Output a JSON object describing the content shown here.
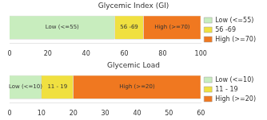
{
  "chart_data": [
    {
      "type": "bar",
      "orientation": "horizontal",
      "stacked": true,
      "title": "Glycemic Index (GI)",
      "categories": [
        null
      ],
      "series": [
        {
          "name": "Low (<=55)",
          "color": "#c8edbe",
          "values": [
            55
          ]
        },
        {
          "name": "56 -69",
          "color": "#f0e040",
          "values": [
            15
          ]
        },
        {
          "name": "High (>=70)",
          "color": "#f07820",
          "values": [
            30
          ]
        }
      ],
      "xlim": [
        0,
        100
      ],
      "xticks": [
        0,
        20,
        40,
        60,
        80,
        100
      ],
      "grid": false,
      "legend": "right",
      "tick_labels": "x"
    },
    {
      "type": "bar",
      "orientation": "horizontal",
      "stacked": true,
      "title": "Glycemic Load",
      "categories": [
        null
      ],
      "series": [
        {
          "name": "Low (<=10)",
          "color": "#c8edbe",
          "values": [
            10
          ]
        },
        {
          "name": "11 - 19",
          "color": "#f0e040",
          "values": [
            10
          ]
        },
        {
          "name": "High (>=20)",
          "color": "#f07820",
          "values": [
            40
          ]
        }
      ],
      "xlim": [
        0,
        60
      ],
      "xticks": [
        0,
        10,
        20,
        30,
        40,
        50,
        60
      ],
      "grid": false,
      "legend": "right",
      "tick_labels": "x"
    }
  ]
}
